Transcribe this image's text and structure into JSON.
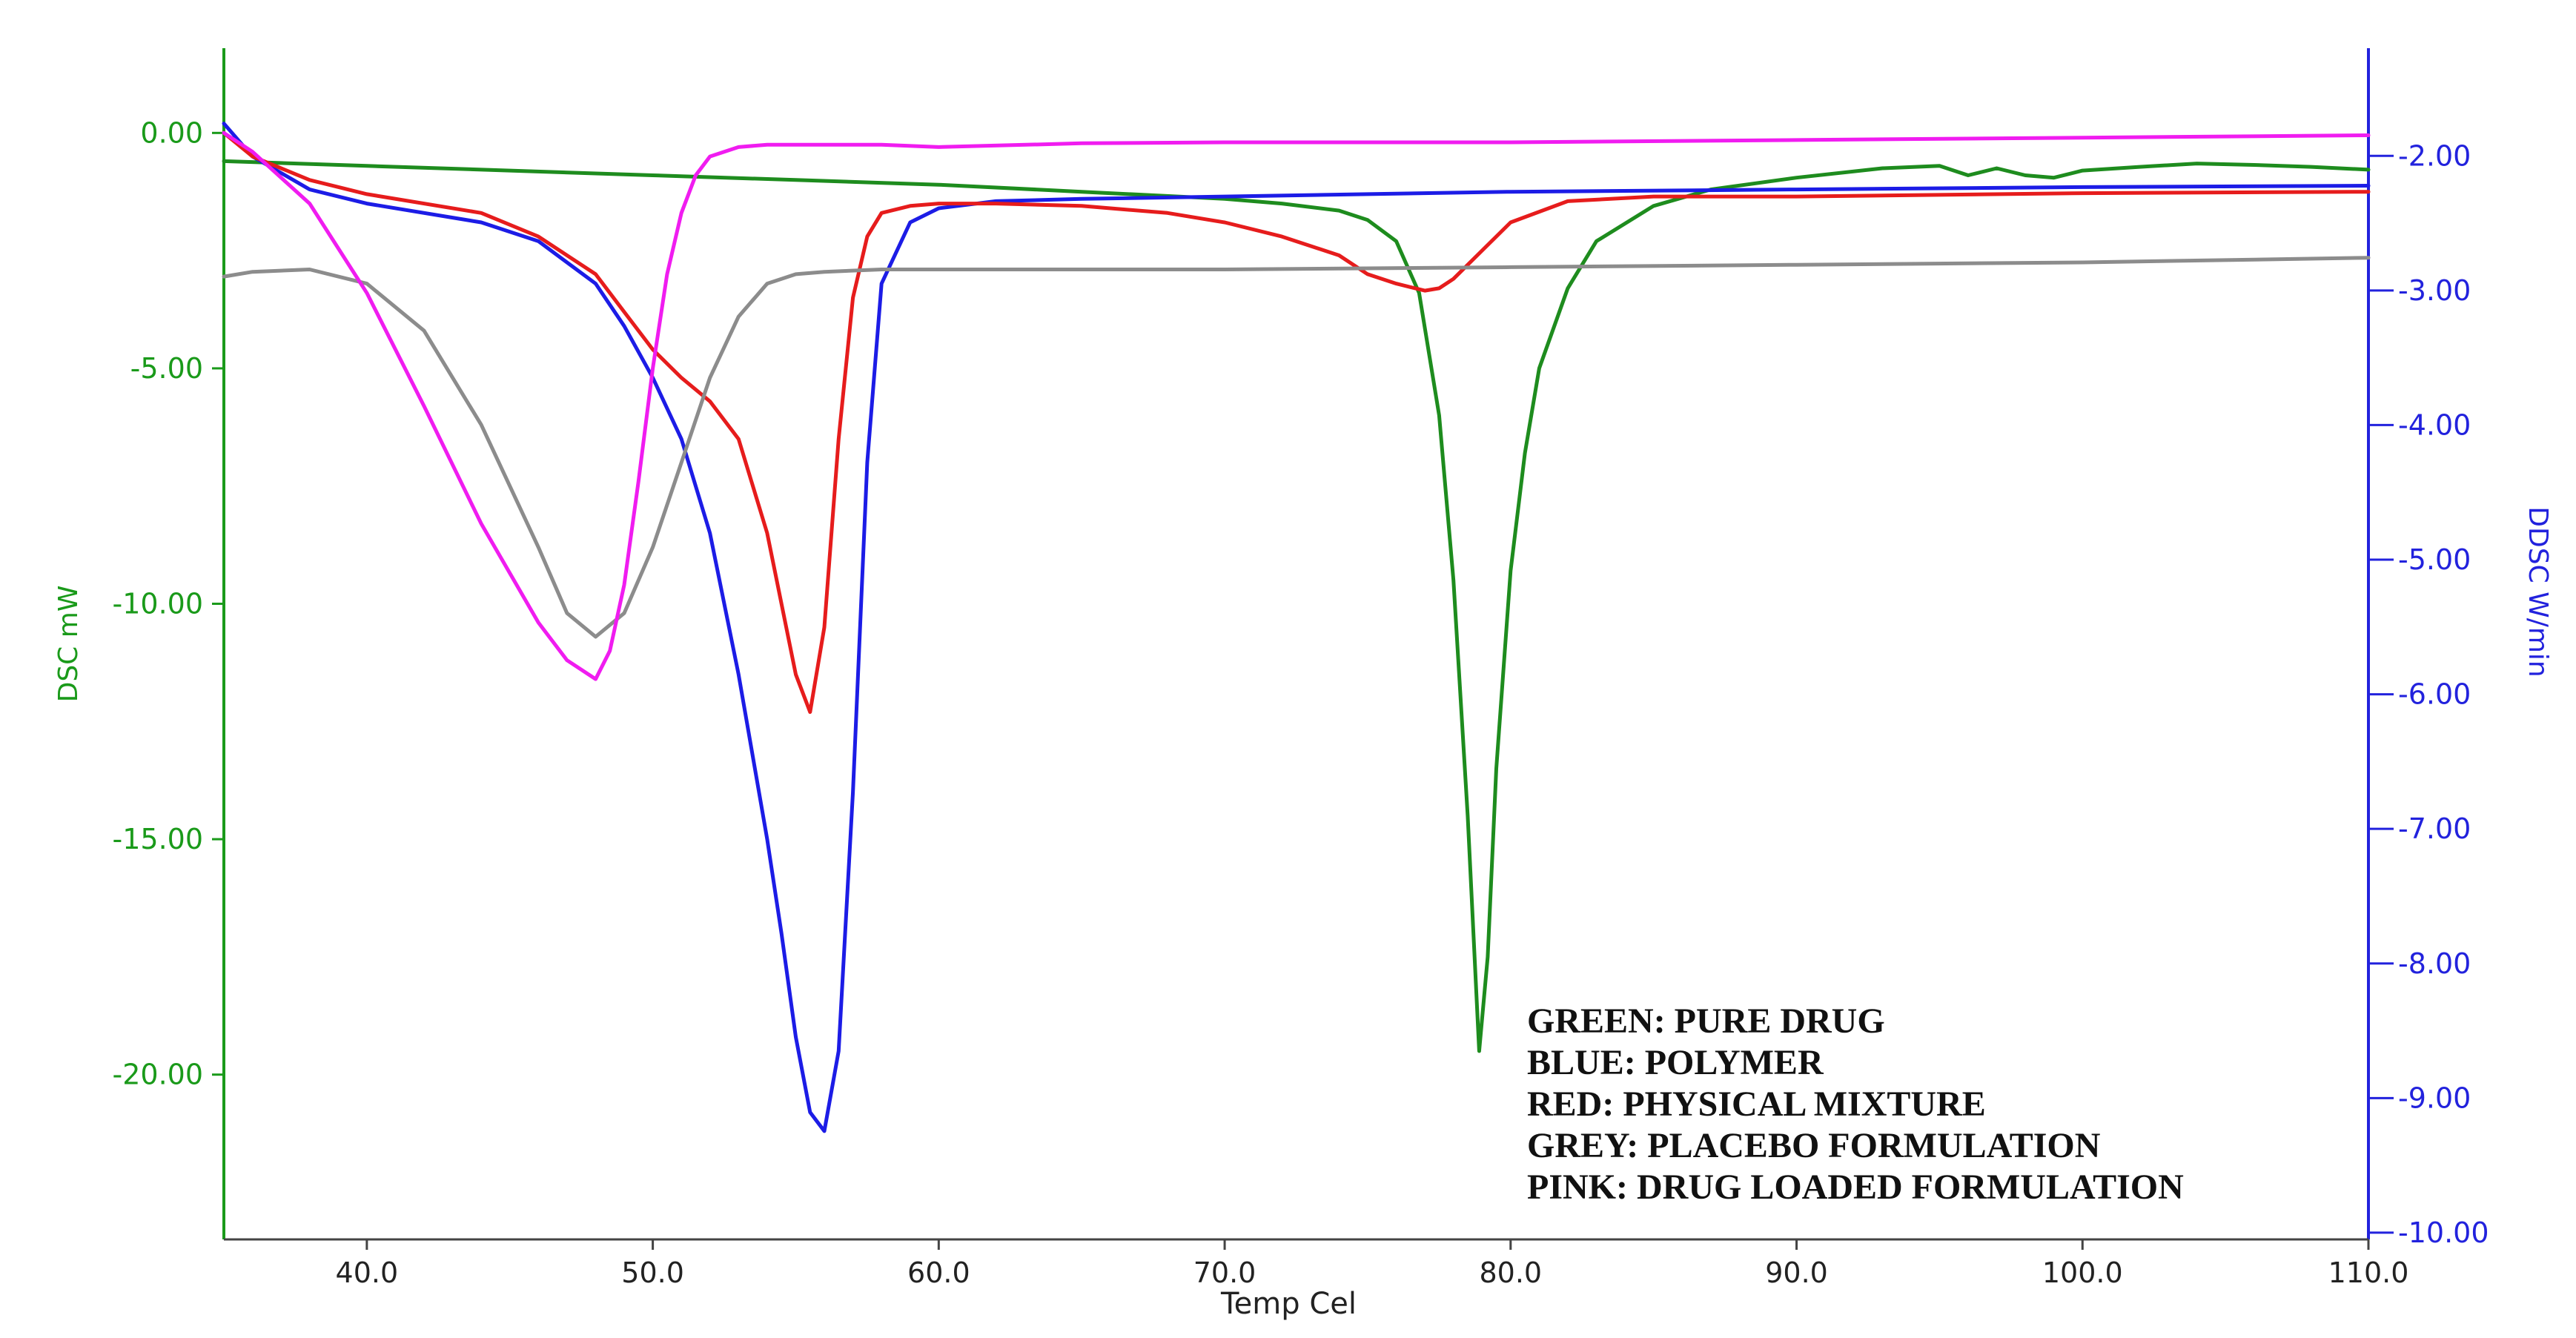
{
  "chart_data": {
    "type": "line",
    "title": "",
    "xlabel": "Temp Cel",
    "ylabel_left": "DSC mW",
    "ylabel_right": "DDSC W/min",
    "xlim": [
      35,
      110
    ],
    "ylim_left": [
      -23.5,
      1.8
    ],
    "ylim_right": [
      -10.05,
      -1.2
    ],
    "x_ticks": [
      "40.0",
      "50.0",
      "60.0",
      "70.0",
      "80.0",
      "90.0",
      "100.0",
      "110.0"
    ],
    "x_tick_values": [
      40,
      50,
      60,
      70,
      80,
      90,
      100,
      110
    ],
    "y_left_ticks": [
      "0.00",
      "-5.00",
      "-10.00",
      "-15.00",
      "-20.00"
    ],
    "y_left_tick_values": [
      0,
      -5,
      -10,
      -15,
      -20
    ],
    "y_right_ticks": [
      "-2.00",
      "-3.00",
      "-4.00",
      "-5.00",
      "-6.00",
      "-7.00",
      "-8.00",
      "-9.00",
      "-10.00"
    ],
    "y_right_tick_values": [
      -2,
      -3,
      -4,
      -5,
      -6,
      -7,
      -8,
      -9,
      -10
    ],
    "grid": false,
    "legend_position": "bottom-right",
    "legend_lines": [
      "GREEN: PURE DRUG",
      "BLUE: POLYMER",
      "RED: PHYSICAL MIXTURE",
      "GREY: PLACEBO FORMULATION",
      "PINK: DRUG LOADED FORMULATION"
    ],
    "colors": {
      "left_axis": "#1a9a1a",
      "right_axis": "#2222dd",
      "green": "#1e8c1e",
      "blue": "#1c1ce6",
      "red": "#e61c1c",
      "grey": "#8c8c8c",
      "pink": "#f01cf0"
    },
    "series": [
      {
        "color_key": "green",
        "x": [
          35,
          40,
          45,
          50,
          55,
          60,
          65,
          70,
          72,
          74,
          75,
          76,
          76.8,
          77.5,
          78,
          78.5,
          78.9,
          79.2,
          79.5,
          80,
          80.5,
          81,
          82,
          83,
          85,
          87,
          90,
          93,
          95,
          96,
          97,
          98,
          99,
          100,
          102,
          104,
          106,
          108,
          110
        ],
        "y": [
          -0.6,
          -0.7,
          -0.8,
          -0.9,
          -1.0,
          -1.1,
          -1.25,
          -1.4,
          -1.5,
          -1.65,
          -1.85,
          -2.3,
          -3.4,
          -6.0,
          -9.5,
          -14.5,
          -19.5,
          -17.5,
          -13.5,
          -9.3,
          -6.8,
          -5.0,
          -3.3,
          -2.3,
          -1.55,
          -1.2,
          -0.95,
          -0.75,
          -0.7,
          -0.9,
          -0.75,
          -0.9,
          -0.95,
          -0.8,
          -0.72,
          -0.65,
          -0.68,
          -0.72,
          -0.78
        ]
      },
      {
        "color_key": "blue",
        "x": [
          35,
          36,
          38,
          40,
          44,
          46,
          48,
          49,
          50,
          51,
          52,
          53,
          54,
          54.5,
          55,
          55.5,
          56,
          56.5,
          57,
          57.5,
          58,
          59,
          60,
          62,
          65,
          70,
          75,
          80,
          90,
          100,
          110
        ],
        "y": [
          0.2,
          -0.5,
          -1.2,
          -1.5,
          -1.9,
          -2.3,
          -3.2,
          -4.1,
          -5.2,
          -6.5,
          -8.5,
          -11.5,
          -15.0,
          -17.0,
          -19.2,
          -20.8,
          -21.2,
          -19.5,
          -14.0,
          -7.0,
          -3.2,
          -1.9,
          -1.6,
          -1.45,
          -1.4,
          -1.35,
          -1.3,
          -1.25,
          -1.2,
          -1.15,
          -1.12
        ]
      },
      {
        "color_key": "red",
        "x": [
          35,
          36,
          38,
          40,
          44,
          46,
          48,
          49,
          50,
          51,
          52,
          53,
          54,
          55,
          55.5,
          56,
          56.5,
          57,
          57.5,
          58,
          59,
          60,
          62,
          65,
          68,
          70,
          72,
          74,
          75,
          76,
          77,
          77.5,
          78,
          79,
          80,
          82,
          85,
          90,
          100,
          110
        ],
        "y": [
          0.0,
          -0.5,
          -1.0,
          -1.3,
          -1.7,
          -2.2,
          -3.0,
          -3.8,
          -4.6,
          -5.2,
          -5.7,
          -6.5,
          -8.5,
          -11.5,
          -12.3,
          -10.5,
          -6.5,
          -3.5,
          -2.2,
          -1.7,
          -1.55,
          -1.5,
          -1.5,
          -1.55,
          -1.7,
          -1.9,
          -2.2,
          -2.6,
          -3.0,
          -3.2,
          -3.35,
          -3.3,
          -3.1,
          -2.5,
          -1.9,
          -1.45,
          -1.35,
          -1.35,
          -1.28,
          -1.25
        ]
      },
      {
        "color_key": "grey",
        "x": [
          35,
          36,
          38,
          40,
          42,
          44,
          46,
          47,
          48,
          49,
          50,
          51,
          52,
          53,
          54,
          55,
          56,
          58,
          60,
          65,
          70,
          80,
          90,
          100,
          110
        ],
        "y": [
          -3.05,
          -2.95,
          -2.9,
          -3.2,
          -4.2,
          -6.2,
          -8.8,
          -10.2,
          -10.7,
          -10.2,
          -8.8,
          -7.0,
          -5.2,
          -3.9,
          -3.2,
          -3.0,
          -2.95,
          -2.9,
          -2.9,
          -2.9,
          -2.9,
          -2.85,
          -2.8,
          -2.75,
          -2.65
        ]
      },
      {
        "color_key": "pink",
        "x": [
          35,
          36,
          38,
          40,
          42,
          44,
          46,
          47,
          48,
          48.5,
          49,
          49.5,
          50,
          50.5,
          51,
          51.5,
          52,
          53,
          54,
          56,
          58,
          60,
          65,
          70,
          80,
          90,
          100,
          110
        ],
        "y": [
          0.0,
          -0.4,
          -1.5,
          -3.4,
          -5.8,
          -8.3,
          -10.4,
          -11.2,
          -11.6,
          -11.0,
          -9.6,
          -7.4,
          -5.0,
          -3.0,
          -1.7,
          -0.9,
          -0.5,
          -0.3,
          -0.25,
          -0.25,
          -0.25,
          -0.3,
          -0.22,
          -0.2,
          -0.2,
          -0.15,
          -0.1,
          -0.05
        ]
      }
    ]
  }
}
